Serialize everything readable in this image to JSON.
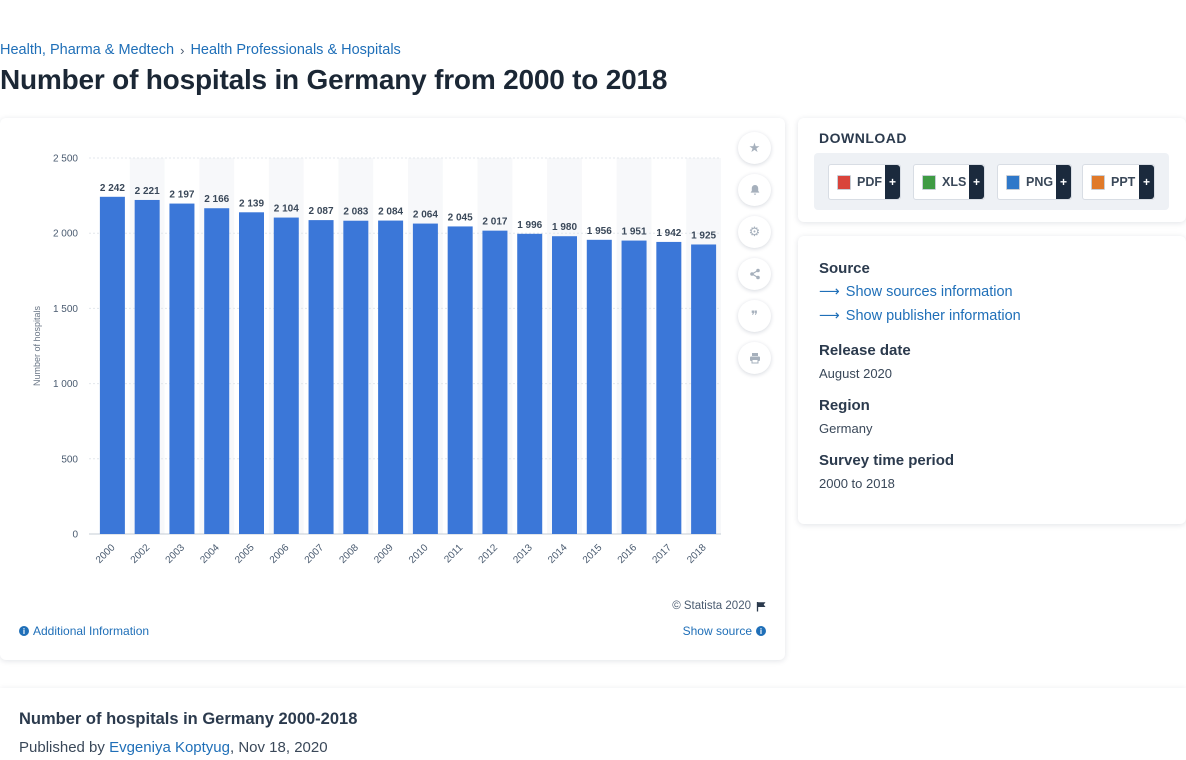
{
  "breadcrumb": [
    "Health, Pharma & Medtech",
    "Health Professionals & Hospitals"
  ],
  "breadcrumb_separator": "›",
  "page_title": "Number of hospitals in Germany from 2000 to 2018",
  "chart_data": {
    "type": "bar",
    "categories": [
      "2000",
      "2002",
      "2003",
      "2004",
      "2005",
      "2006",
      "2007",
      "2008",
      "2009",
      "2010",
      "2011",
      "2012",
      "2013",
      "2014",
      "2015",
      "2016",
      "2017",
      "2018"
    ],
    "values": [
      2242,
      2221,
      2197,
      2166,
      2139,
      2104,
      2087,
      2083,
      2084,
      2064,
      2045,
      2017,
      1996,
      1980,
      1956,
      1951,
      1942,
      1925
    ],
    "value_labels": [
      "2 242",
      "2 221",
      "2 197",
      "2 166",
      "2 139",
      "2 104",
      "2 087",
      "2 083",
      "2 084",
      "2 064",
      "2 045",
      "2 017",
      "1 996",
      "1 980",
      "1 956",
      "1 951",
      "1 942",
      "1 925"
    ],
    "ylabel": "Number of hospitals",
    "xlabel": "",
    "ylim": [
      0,
      2500
    ],
    "yticks": [
      0,
      500,
      1000,
      1500,
      2000,
      2500
    ],
    "ytick_labels": [
      "0",
      "500",
      "1 000",
      "1 500",
      "2 000",
      "2 500"
    ],
    "bar_color": "#3b77d8",
    "label_color": "#3a4859",
    "grid": true,
    "legend": "none"
  },
  "chart_tools": [
    "star-icon",
    "bell-icon",
    "gear-icon",
    "share-icon",
    "quote-icon",
    "print-icon"
  ],
  "copyright": "© Statista 2020",
  "additional_info_label": "Additional Information",
  "show_source_label": "Show source",
  "download": {
    "title": "DOWNLOAD",
    "buttons": [
      {
        "label": "PDF",
        "plus": "+",
        "icon": "pdf-file-icon",
        "color": "#d9443b"
      },
      {
        "label": "XLS",
        "plus": "+",
        "icon": "xls-file-icon",
        "color": "#3f9b44"
      },
      {
        "label": "PNG",
        "plus": "+",
        "icon": "png-file-icon",
        "color": "#2f78c9"
      },
      {
        "label": "PPT",
        "plus": "+",
        "icon": "ppt-file-icon",
        "color": "#e07a2a"
      }
    ]
  },
  "meta": {
    "source_heading": "Source",
    "show_sources": "Show sources information",
    "show_publisher": "Show publisher information",
    "release_heading": "Release date",
    "release_value": "August 2020",
    "region_heading": "Region",
    "region_value": "Germany",
    "period_heading": "Survey time period",
    "period_value": "2000 to 2018"
  },
  "bottom": {
    "title": "Number of hospitals in Germany 2000-2018",
    "published_by": "Published by",
    "author": "Evgeniya Koptyug",
    "date": ", Nov 18, 2020"
  }
}
